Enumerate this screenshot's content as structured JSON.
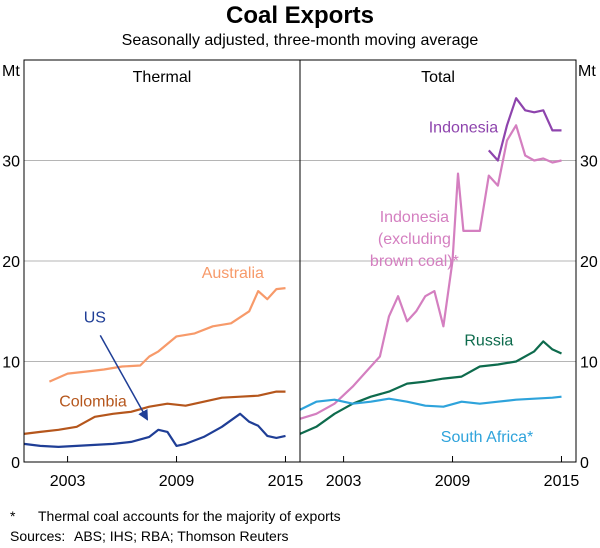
{
  "title": "Coal Exports",
  "subtitle": "Seasonally adjusted, three-month moving average",
  "unit_label": "Mt",
  "footnote": {
    "marker": "*",
    "text": "Thermal coal accounts for the majority of exports"
  },
  "sources": {
    "label": "Sources:",
    "text": "ABS; IHS; RBA; Thomson Reuters"
  },
  "colors": {
    "australia": "#f79a6a",
    "colombia": "#b5561c",
    "us": "#1f3e96",
    "indonesia": "#8e44ad",
    "indonesia_excl": "#d47fc0",
    "russia": "#0e6b4d",
    "south_africa": "#2ea3db"
  },
  "chart_data": [
    {
      "type": "line",
      "panel": "Thermal",
      "x_ticks": [
        "2003",
        "2009",
        "2015"
      ],
      "y_ticks": [
        "0",
        "10",
        "20",
        "30"
      ],
      "ylim": [
        0,
        40
      ],
      "xlim": [
        2000.6,
        2015.8
      ],
      "grid": true,
      "series": [
        {
          "name": "Australia",
          "key": "australia",
          "label_text": "Australia",
          "x": [
            2002.0,
            2003.0,
            2004.0,
            2005.0,
            2006.0,
            2007.0,
            2007.5,
            2008.0,
            2009.0,
            2010.0,
            2011.0,
            2012.0,
            2013.0,
            2013.5,
            2014.0,
            2014.5,
            2015.0
          ],
          "y": [
            8.0,
            8.8,
            9.0,
            9.2,
            9.5,
            9.6,
            10.5,
            11.0,
            12.5,
            12.8,
            13.5,
            13.8,
            15.0,
            17.0,
            16.2,
            17.2,
            17.3
          ]
        },
        {
          "name": "Colombia",
          "key": "colombia",
          "label_text": "Colombia",
          "x": [
            2000.6,
            2001.5,
            2002.5,
            2003.5,
            2004.5,
            2005.5,
            2006.5,
            2007.5,
            2008.5,
            2009.5,
            2010.5,
            2011.5,
            2012.5,
            2013.5,
            2014.5,
            2015.0
          ],
          "y": [
            2.8,
            3.0,
            3.2,
            3.5,
            4.5,
            4.8,
            5.0,
            5.5,
            5.8,
            5.6,
            6.0,
            6.4,
            6.5,
            6.6,
            7.0,
            7.0
          ]
        },
        {
          "name": "US",
          "key": "us",
          "label_text": "US",
          "x": [
            2000.6,
            2001.5,
            2002.5,
            2003.5,
            2004.5,
            2005.5,
            2006.5,
            2007.5,
            2008.0,
            2008.5,
            2009.0,
            2009.5,
            2010.5,
            2011.5,
            2012.5,
            2013.0,
            2013.5,
            2014.0,
            2014.5,
            2015.0
          ],
          "y": [
            1.8,
            1.6,
            1.5,
            1.6,
            1.7,
            1.8,
            2.0,
            2.5,
            3.2,
            3.0,
            1.6,
            1.8,
            2.5,
            3.5,
            4.8,
            4.0,
            3.6,
            2.6,
            2.4,
            2.6
          ]
        }
      ],
      "annotations": [
        {
          "text": "Australia",
          "x": 2012.1,
          "y": 18.3
        },
        {
          "text": "Colombia",
          "x": 2004.4,
          "y": 5.5
        },
        {
          "text": "US",
          "x": 2004.5,
          "y": 13.9
        }
      ]
    },
    {
      "type": "line",
      "panel": "Total",
      "x_ticks": [
        "2003",
        "2009",
        "2015"
      ],
      "y_ticks": [
        "0",
        "10",
        "20",
        "30"
      ],
      "ylim": [
        0,
        40
      ],
      "xlim": [
        2000.6,
        2015.8
      ],
      "grid": true,
      "series": [
        {
          "name": "Indonesia",
          "key": "indonesia",
          "label_text": "Indonesia",
          "x": [
            2011.0,
            2011.5,
            2012.0,
            2012.5,
            2013.0,
            2013.5,
            2014.0,
            2014.5,
            2015.0
          ],
          "y": [
            31.0,
            30.0,
            33.5,
            36.2,
            35.0,
            34.8,
            35.0,
            33.0,
            33.0
          ]
        },
        {
          "name": "Indonesia (excluding brown coal)*",
          "key": "indonesia_excl",
          "label_lines": [
            "Indonesia",
            "(excluding",
            "brown coal)*"
          ],
          "x": [
            2000.6,
            2001.5,
            2002.5,
            2003.5,
            2004.5,
            2005.0,
            2005.5,
            2006.0,
            2006.5,
            2007.0,
            2007.5,
            2008.0,
            2008.5,
            2009.0,
            2009.3,
            2009.6,
            2010.0,
            2010.5,
            2011.0,
            2011.5,
            2012.0,
            2012.5,
            2013.0,
            2013.5,
            2014.0,
            2014.5,
            2015.0
          ],
          "y": [
            4.3,
            4.8,
            5.8,
            7.5,
            9.5,
            10.5,
            14.5,
            16.5,
            14.0,
            15.0,
            16.5,
            17.0,
            13.5,
            20.0,
            28.7,
            23.0,
            23.0,
            23.0,
            28.5,
            27.5,
            32.0,
            33.5,
            30.5,
            30.0,
            30.2,
            29.8,
            30.0
          ]
        },
        {
          "name": "Russia",
          "key": "russia",
          "label_text": "Russia",
          "x": [
            2000.6,
            2001.5,
            2002.5,
            2003.5,
            2004.5,
            2005.5,
            2006.5,
            2007.5,
            2008.5,
            2009.5,
            2010.5,
            2011.5,
            2012.5,
            2013.5,
            2014.0,
            2014.5,
            2015.0
          ],
          "y": [
            2.8,
            3.5,
            4.8,
            5.8,
            6.5,
            7.0,
            7.8,
            8.0,
            8.3,
            8.5,
            9.5,
            9.7,
            10.0,
            11.0,
            12.0,
            11.2,
            10.8
          ]
        },
        {
          "name": "South Africa*",
          "key": "south_africa",
          "label_text": "South Africa*",
          "x": [
            2000.6,
            2001.5,
            2002.5,
            2003.5,
            2004.5,
            2005.5,
            2006.5,
            2007.5,
            2008.5,
            2009.5,
            2010.5,
            2011.5,
            2012.5,
            2013.5,
            2014.5,
            2015.0
          ],
          "y": [
            5.2,
            6.0,
            6.2,
            5.8,
            6.0,
            6.3,
            6.0,
            5.6,
            5.5,
            6.0,
            5.8,
            6.0,
            6.2,
            6.3,
            6.4,
            6.5
          ]
        }
      ],
      "annotations": [
        {
          "text": "Indonesia",
          "x": 2009.6,
          "y": 32.8
        },
        {
          "text": "Indonesia (excluding brown coal)*",
          "x": 2006.9,
          "y": 23.9
        },
        {
          "text": "Russia",
          "x": 2011.0,
          "y": 11.6
        },
        {
          "text": "South Africa*",
          "x": 2010.9,
          "y": 2.0
        }
      ]
    }
  ]
}
